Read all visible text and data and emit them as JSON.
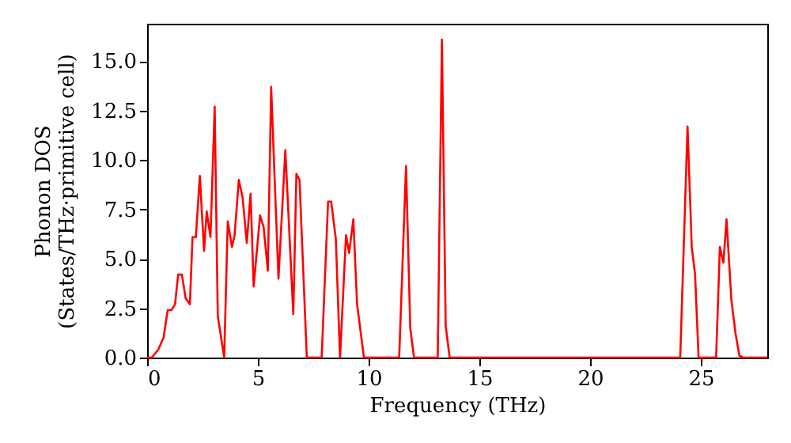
{
  "chart_data": {
    "type": "line",
    "xlabel": "Frequency (THz)",
    "ylabel": "Phonon DOS\n(States/THz·primitive cell)",
    "xlim": [
      0,
      28
    ],
    "ylim": [
      0,
      16.9
    ],
    "xticks": [
      0,
      5,
      10,
      15,
      20,
      25
    ],
    "yticks": [
      {
        "value": 0,
        "label": "0.0"
      },
      {
        "value": 2.5,
        "label": "2.5"
      },
      {
        "value": 5,
        "label": "5.0"
      },
      {
        "value": 7.5,
        "label": "7.5"
      },
      {
        "value": 10,
        "label": "10.0"
      },
      {
        "value": 12.5,
        "label": "12.5"
      },
      {
        "value": 15,
        "label": "15.0"
      }
    ],
    "grid": false,
    "marker": "none",
    "line_style": "solid",
    "series": [
      {
        "color": "#ff0000",
        "x": [
          0,
          0.21,
          0.5,
          0.74,
          0.93,
          1.1,
          1.26,
          1.4,
          1.57,
          1.74,
          1.93,
          2.05,
          2.2,
          2.38,
          2.57,
          2.69,
          2.86,
          3.05,
          3.19,
          3.48,
          3.64,
          3.83,
          3.95,
          4.14,
          4.31,
          4.5,
          4.67,
          4.81,
          5.1,
          5.26,
          5.45,
          5.6,
          5.93,
          6.24,
          6.6,
          6.74,
          6.88,
          7.21,
          7.88,
          8.17,
          8.31,
          8.52,
          8.71,
          8.98,
          9.12,
          9.31,
          9.48,
          9.79,
          11.38,
          11.69,
          11.88,
          12.05,
          13.12,
          13.31,
          13.48,
          13.66,
          24.07,
          24.4,
          24.59,
          24.74,
          24.9,
          25.69,
          25.86,
          26.02,
          26.16,
          26.38,
          26.57,
          26.74,
          26.9,
          28
        ],
        "values": [
          0,
          0,
          0.4,
          1.0,
          2.4,
          2.4,
          2.7,
          4.2,
          4.2,
          3.0,
          2.7,
          6.1,
          6.1,
          9.2,
          5.4,
          7.4,
          6.1,
          12.7,
          2.1,
          0,
          6.9,
          5.6,
          6.2,
          9.0,
          8.1,
          5.8,
          8.3,
          3.6,
          7.2,
          6.6,
          4.4,
          13.7,
          4.0,
          10.5,
          2.2,
          9.3,
          9.0,
          0,
          0,
          7.9,
          7.9,
          6.0,
          0,
          6.2,
          5.3,
          7.0,
          2.7,
          0,
          0,
          9.7,
          1.5,
          0,
          0,
          16.1,
          1.6,
          0,
          0,
          11.7,
          5.6,
          4.2,
          0,
          0,
          5.6,
          4.8,
          7.0,
          2.9,
          1.2,
          0.1,
          0,
          0
        ]
      }
    ]
  }
}
